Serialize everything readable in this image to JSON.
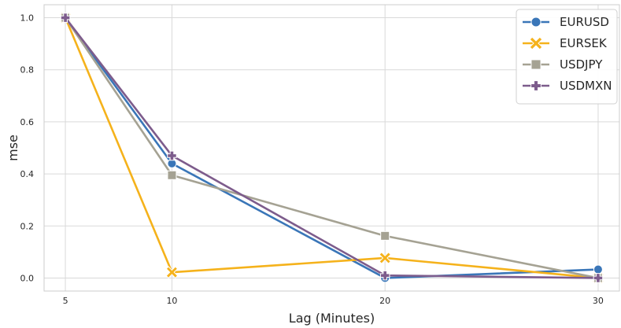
{
  "chart_data": {
    "type": "line",
    "title": "",
    "xlabel": "Lag (Minutes)",
    "ylabel": "mse",
    "x": [
      5,
      10,
      20,
      30
    ],
    "xticks": [
      "5",
      "10",
      "20",
      "30"
    ],
    "yticks": [
      "0.0",
      "0.2",
      "0.4",
      "0.6",
      "0.8",
      "1.0"
    ],
    "xlim": [
      4.0,
      31.0
    ],
    "ylim": [
      -0.05,
      1.05
    ],
    "grid": true,
    "legend_position": "top-right",
    "series": [
      {
        "name": "EURUSD",
        "color": "#3a76b8",
        "marker": "circle",
        "values": [
          1.0,
          0.44,
          0.0,
          0.033
        ]
      },
      {
        "name": "EURSEK",
        "color": "#f5b21b",
        "marker": "x",
        "values": [
          1.0,
          0.022,
          0.077,
          0.0
        ]
      },
      {
        "name": "USDJPY",
        "color": "#a5a293",
        "marker": "square",
        "values": [
          1.0,
          0.395,
          0.162,
          0.0
        ]
      },
      {
        "name": "USDMXN",
        "color": "#7d5c8c",
        "marker": "plus",
        "values": [
          1.0,
          0.47,
          0.01,
          0.0
        ]
      }
    ]
  }
}
